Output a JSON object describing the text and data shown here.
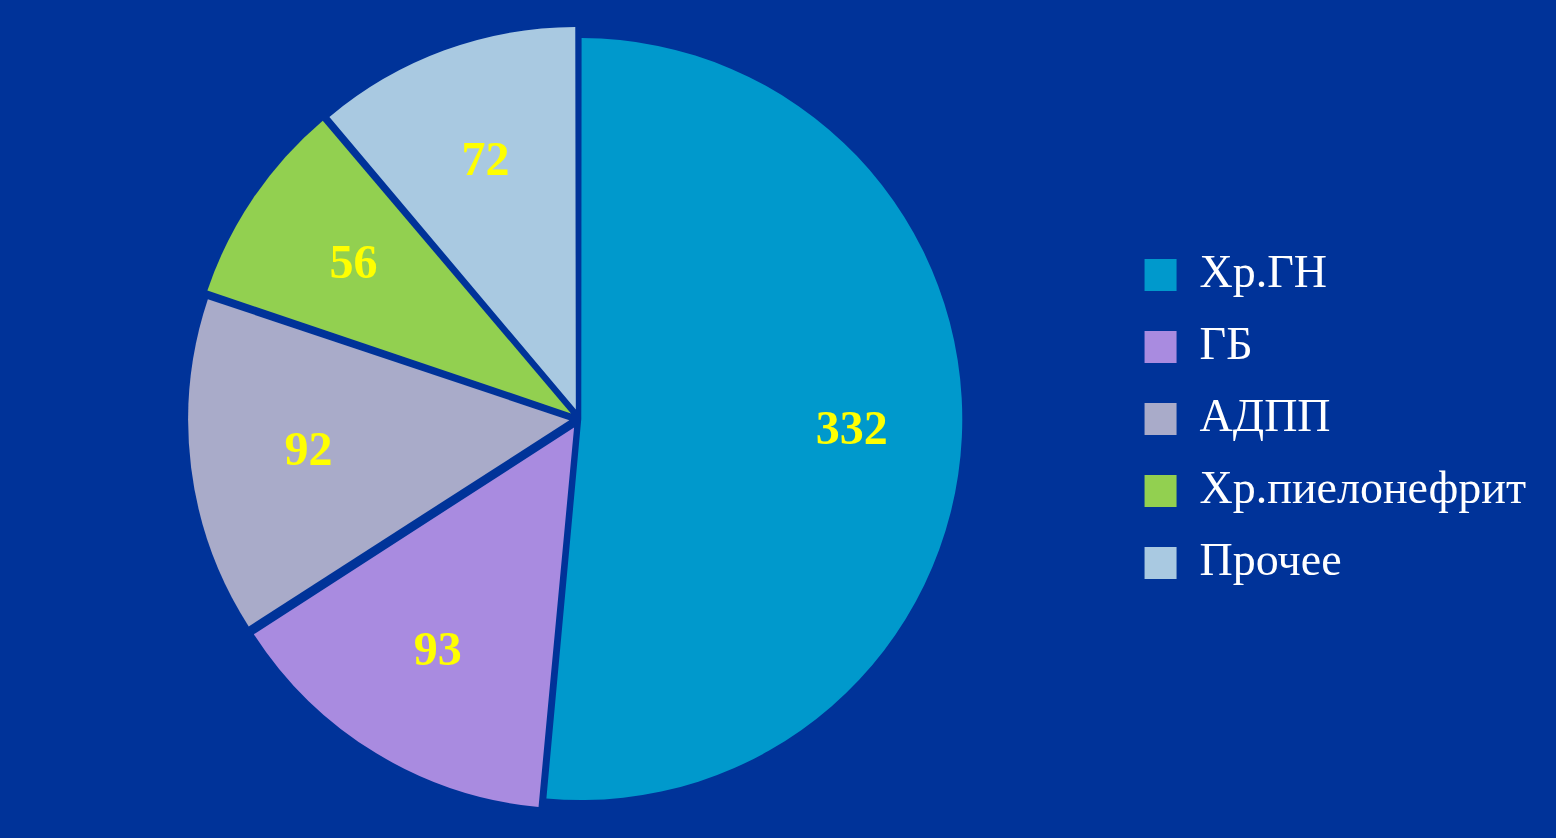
{
  "chart_data": {
    "type": "pie",
    "categories": [
      "Хр.ГН",
      "ГБ",
      "АДПП",
      "Хр.пиелонефрит",
      "Прочее"
    ],
    "values": [
      332,
      93,
      92,
      56,
      72
    ],
    "colors": [
      "#0099cc",
      "#a98be0",
      "#a9abc9",
      "#92d050",
      "#a9c9e1"
    ],
    "data_labels": true,
    "legend": "right"
  }
}
